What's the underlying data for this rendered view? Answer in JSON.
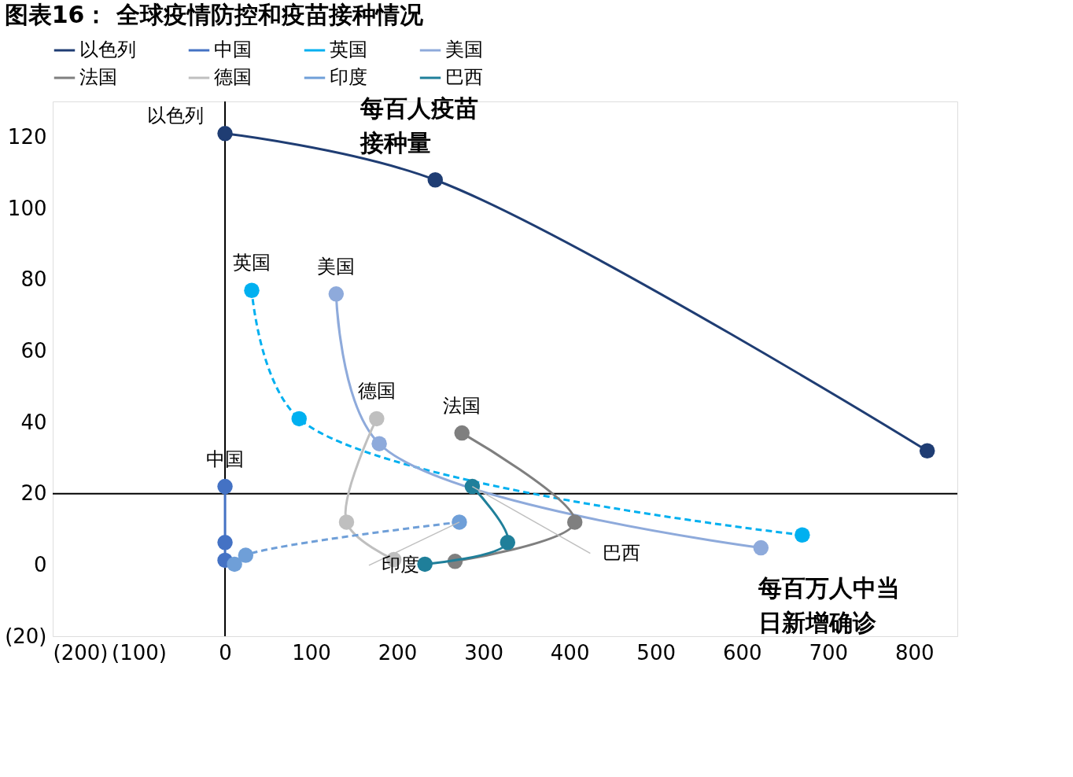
{
  "chart_data": {
    "type": "line",
    "title": "图表16：  全球疫情防控和疫苗接种情况",
    "xlabel": "每百万人中当日新增确诊",
    "ylabel": "每百人疫苗接种量",
    "xlim": [
      -200,
      850
    ],
    "ylim": [
      -20,
      130
    ],
    "xticks": [
      {
        "value": -200,
        "label": "(200)"
      },
      {
        "value": -100,
        "label": "(100)"
      },
      0,
      100,
      200,
      300,
      400,
      500,
      600,
      700,
      800
    ],
    "yticks": [
      {
        "value": -20,
        "label": "(20)"
      },
      0,
      20,
      40,
      60,
      80,
      100,
      120
    ],
    "ref_lines": [
      {
        "axis": "x",
        "value": 0,
        "color": "#000000"
      },
      {
        "axis": "y",
        "value": 20,
        "color": "#000000"
      }
    ],
    "grid": false,
    "legend": "top",
    "marker": "circle",
    "series": [
      {
        "name": "以色列",
        "color": "#1f3d73",
        "line_style": "solid",
        "x": [
          815,
          244,
          0
        ],
        "values": [
          32,
          108,
          121
        ]
      },
      {
        "name": "中国",
        "color": "#4472c4",
        "line_style": "solid",
        "x": [
          0,
          0,
          0
        ],
        "values": [
          1.3,
          6.3,
          22
        ]
      },
      {
        "name": "英国",
        "color": "#00b0f0",
        "line_style": "dashed",
        "x": [
          670,
          86,
          31
        ],
        "values": [
          8.4,
          41,
          77
        ]
      },
      {
        "name": "美国",
        "color": "#8eaadb",
        "line_style": "solid",
        "x": [
          622,
          179,
          129
        ],
        "values": [
          4.8,
          34,
          76
        ]
      },
      {
        "name": "法国",
        "color": "#7f7f7f",
        "line_style": "solid",
        "x": [
          267,
          406,
          275
        ],
        "values": [
          1,
          12,
          37
        ]
      },
      {
        "name": "德国",
        "color": "#bfbfbf",
        "line_style": "solid",
        "x": [
          196,
          141,
          176
        ],
        "values": [
          1.5,
          12,
          41
        ]
      },
      {
        "name": "印度",
        "color": "#6f9fd8",
        "line_style": "dashed",
        "x": [
          11,
          24,
          272
        ],
        "values": [
          0.2,
          2.7,
          12
        ]
      },
      {
        "name": "巴西",
        "color": "#1f7f9a",
        "line_style": "solid",
        "x": [
          232,
          328,
          287
        ],
        "values": [
          0.2,
          6.3,
          22
        ]
      }
    ]
  }
}
